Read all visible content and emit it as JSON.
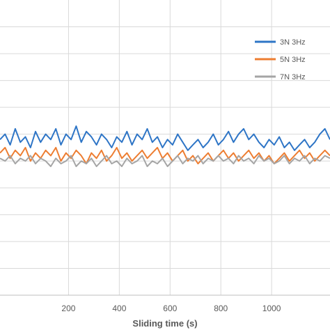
{
  "chart_data": {
    "type": "line",
    "title": "",
    "xlabel": "Sliding time (s)",
    "ylabel": "",
    "xlim": [
      -70,
      1230
    ],
    "ylim": [
      0,
      1.1
    ],
    "x_ticks": [
      200,
      400,
      600,
      800,
      1000
    ],
    "y_gridlines": [
      0.1,
      0.2,
      0.3,
      0.4,
      0.5,
      0.6,
      0.7,
      0.8,
      0.9,
      1.0
    ],
    "grid": true,
    "legend_position": "top-right",
    "series": [
      {
        "name": "3N 3Hz",
        "color": "#2E75C6",
        "x": [
          -70,
          -50,
          -30,
          -10,
          10,
          30,
          50,
          70,
          90,
          110,
          130,
          150,
          170,
          190,
          210,
          230,
          250,
          270,
          290,
          310,
          330,
          350,
          370,
          390,
          410,
          430,
          450,
          470,
          490,
          510,
          530,
          550,
          570,
          590,
          610,
          630,
          650,
          670,
          690,
          710,
          730,
          750,
          770,
          790,
          810,
          830,
          850,
          870,
          890,
          910,
          930,
          950,
          970,
          990,
          1010,
          1030,
          1050,
          1070,
          1090,
          1110,
          1130,
          1150,
          1170,
          1190,
          1210,
          1230
        ],
        "values": [
          0.58,
          0.6,
          0.56,
          0.62,
          0.57,
          0.59,
          0.55,
          0.61,
          0.57,
          0.6,
          0.58,
          0.62,
          0.56,
          0.6,
          0.58,
          0.63,
          0.57,
          0.61,
          0.59,
          0.56,
          0.6,
          0.58,
          0.55,
          0.59,
          0.57,
          0.61,
          0.56,
          0.6,
          0.58,
          0.62,
          0.57,
          0.59,
          0.55,
          0.58,
          0.56,
          0.6,
          0.57,
          0.54,
          0.56,
          0.58,
          0.55,
          0.57,
          0.6,
          0.56,
          0.58,
          0.61,
          0.57,
          0.6,
          0.62,
          0.58,
          0.6,
          0.57,
          0.55,
          0.58,
          0.56,
          0.59,
          0.55,
          0.57,
          0.54,
          0.56,
          0.58,
          0.55,
          0.57,
          0.6,
          0.62,
          0.58
        ]
      },
      {
        "name": "5N 3Hz",
        "color": "#ED7D31",
        "x": [
          -70,
          -50,
          -30,
          -10,
          10,
          30,
          50,
          70,
          90,
          110,
          130,
          150,
          170,
          190,
          210,
          230,
          250,
          270,
          290,
          310,
          330,
          350,
          370,
          390,
          410,
          430,
          450,
          470,
          490,
          510,
          530,
          550,
          570,
          590,
          610,
          630,
          650,
          670,
          690,
          710,
          730,
          750,
          770,
          790,
          810,
          830,
          850,
          870,
          890,
          910,
          930,
          950,
          970,
          990,
          1010,
          1030,
          1050,
          1070,
          1090,
          1110,
          1130,
          1150,
          1170,
          1190,
          1210,
          1230
        ],
        "values": [
          0.53,
          0.55,
          0.51,
          0.54,
          0.52,
          0.55,
          0.5,
          0.53,
          0.51,
          0.54,
          0.52,
          0.55,
          0.5,
          0.53,
          0.51,
          0.54,
          0.52,
          0.49,
          0.53,
          0.51,
          0.54,
          0.5,
          0.52,
          0.55,
          0.51,
          0.53,
          0.5,
          0.52,
          0.54,
          0.51,
          0.53,
          0.55,
          0.51,
          0.53,
          0.5,
          0.52,
          0.54,
          0.5,
          0.52,
          0.49,
          0.51,
          0.53,
          0.5,
          0.52,
          0.54,
          0.51,
          0.53,
          0.5,
          0.52,
          0.54,
          0.51,
          0.53,
          0.5,
          0.52,
          0.49,
          0.51,
          0.53,
          0.5,
          0.52,
          0.54,
          0.51,
          0.53,
          0.5,
          0.52,
          0.54,
          0.52
        ]
      },
      {
        "name": "7N 3Hz",
        "color": "#A5A5A5",
        "x": [
          -70,
          -50,
          -30,
          -10,
          10,
          30,
          50,
          70,
          90,
          110,
          130,
          150,
          170,
          190,
          210,
          230,
          250,
          270,
          290,
          310,
          330,
          350,
          370,
          390,
          410,
          430,
          450,
          470,
          490,
          510,
          530,
          550,
          570,
          590,
          610,
          630,
          650,
          670,
          690,
          710,
          730,
          750,
          770,
          790,
          810,
          830,
          850,
          870,
          890,
          910,
          930,
          950,
          970,
          990,
          1010,
          1030,
          1050,
          1070,
          1090,
          1110,
          1130,
          1150,
          1170,
          1190,
          1210,
          1230
        ],
        "values": [
          0.51,
          0.5,
          0.52,
          0.49,
          0.51,
          0.5,
          0.52,
          0.49,
          0.51,
          0.5,
          0.48,
          0.51,
          0.49,
          0.5,
          0.52,
          0.48,
          0.5,
          0.49,
          0.51,
          0.48,
          0.5,
          0.52,
          0.49,
          0.5,
          0.48,
          0.51,
          0.49,
          0.5,
          0.52,
          0.48,
          0.5,
          0.49,
          0.51,
          0.48,
          0.5,
          0.52,
          0.49,
          0.51,
          0.5,
          0.52,
          0.49,
          0.51,
          0.5,
          0.52,
          0.5,
          0.51,
          0.49,
          0.52,
          0.5,
          0.51,
          0.49,
          0.52,
          0.5,
          0.51,
          0.49,
          0.5,
          0.52,
          0.49,
          0.51,
          0.5,
          0.52,
          0.49,
          0.51,
          0.5,
          0.52,
          0.51
        ]
      }
    ]
  }
}
